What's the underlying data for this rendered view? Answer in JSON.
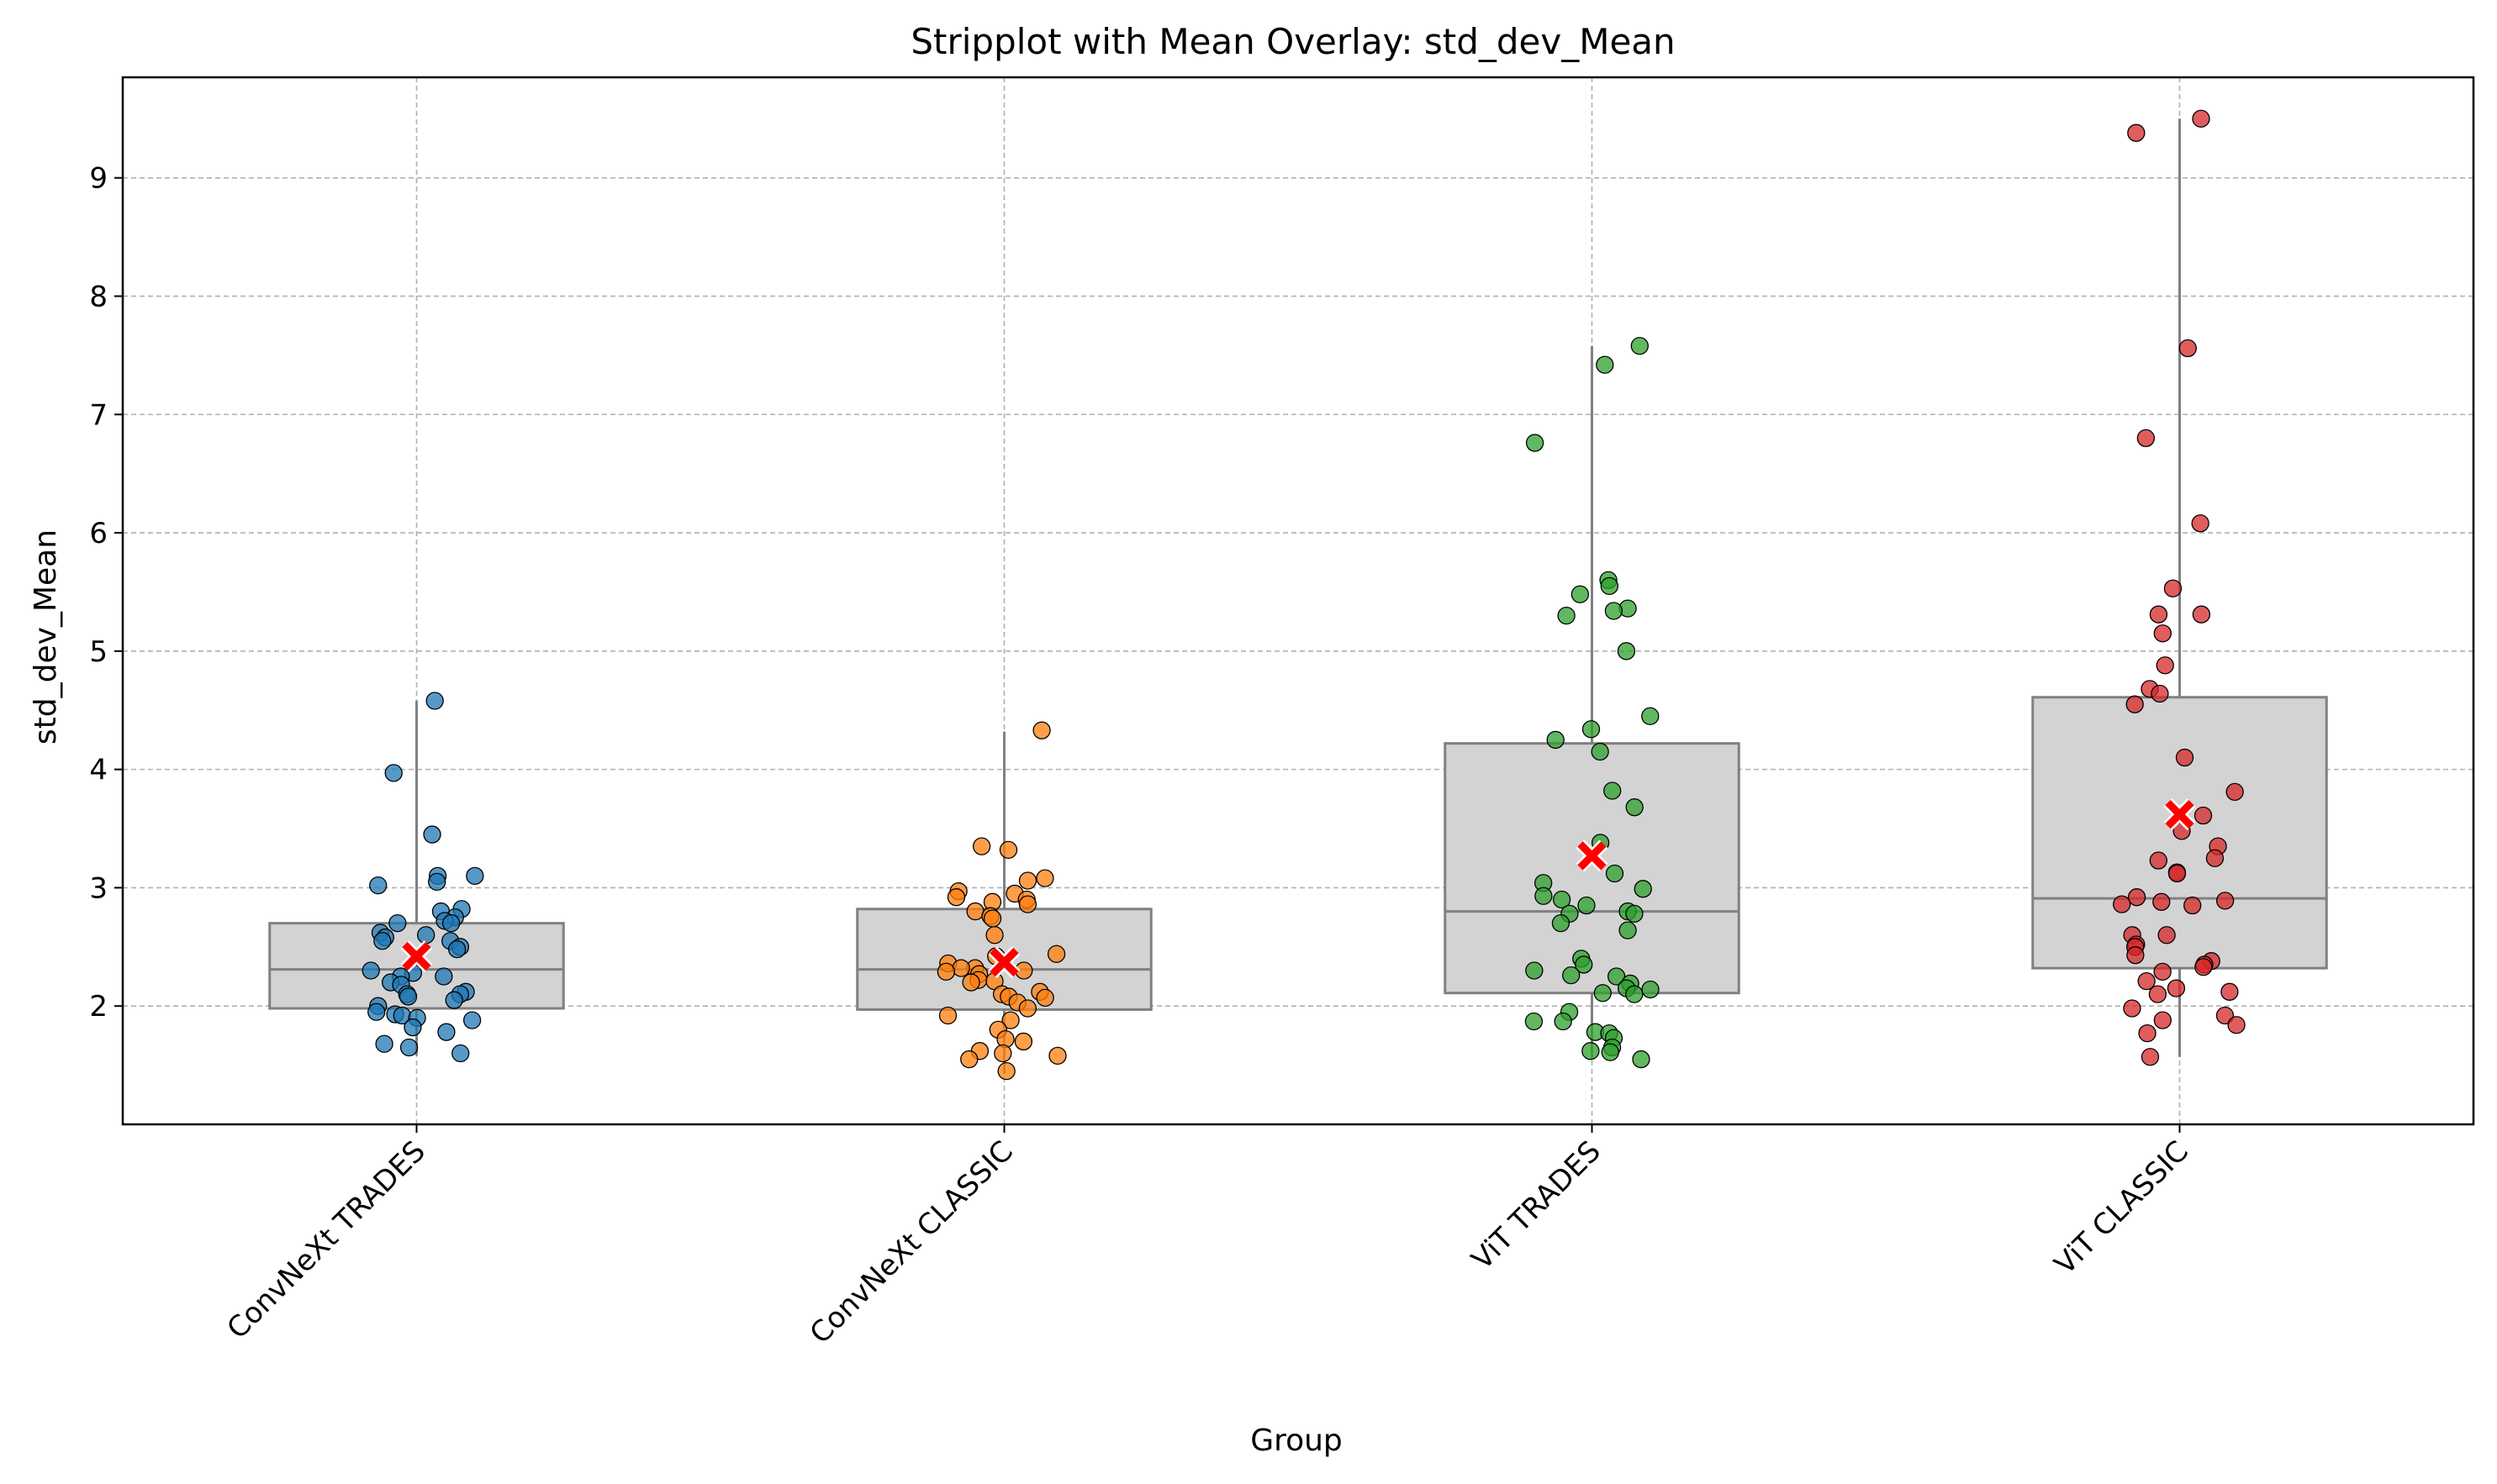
{
  "chart_data": {
    "type": "box_strip",
    "title": "Stripplot with Mean Overlay: std_dev_Mean",
    "xlabel": "Group",
    "ylabel": "std_dev_Mean",
    "categories": [
      "ConvNeXt TRADES",
      "ConvNeXt CLASSIC",
      "ViT TRADES",
      "ViT CLASSIC"
    ],
    "ylim": [
      1.0,
      9.85
    ],
    "yticks": [
      2,
      3,
      4,
      5,
      6,
      7,
      8,
      9
    ],
    "grid": true,
    "box_color": "#d3d3d3",
    "box_edge_color": "#808080",
    "mean_marker_color": "#ff0000",
    "series": [
      {
        "category": "ConvNeXt TRADES",
        "color": "#1f77b4",
        "box": {
          "q1": 1.98,
          "median": 2.31,
          "q3": 2.7,
          "whisker_low": 1.58,
          "whisker_high": 4.58
        },
        "mean": 2.42,
        "points": [
          4.58,
          3.97,
          3.45,
          3.1,
          3.1,
          3.05,
          3.02,
          2.82,
          2.8,
          2.75,
          2.72,
          2.7,
          2.7,
          2.62,
          2.6,
          2.58,
          2.55,
          2.55,
          2.5,
          2.48,
          2.3,
          2.28,
          2.25,
          2.25,
          2.2,
          2.18,
          2.12,
          2.1,
          2.1,
          2.08,
          2.05,
          2.0,
          1.95,
          1.93,
          1.92,
          1.9,
          1.88,
          1.82,
          1.78,
          1.68,
          1.65,
          1.6
        ]
      },
      {
        "category": "ConvNeXt CLASSIC",
        "color": "#ff7f0e",
        "box": {
          "q1": 1.97,
          "median": 2.31,
          "q3": 2.82,
          "whisker_low": 1.43,
          "whisker_high": 4.32
        },
        "mean": 2.37,
        "points": [
          4.33,
          3.35,
          3.32,
          3.08,
          3.06,
          2.97,
          2.95,
          2.92,
          2.9,
          2.88,
          2.86,
          2.8,
          2.76,
          2.74,
          2.6,
          2.44,
          2.42,
          2.36,
          2.32,
          2.32,
          2.3,
          2.29,
          2.27,
          2.22,
          2.21,
          2.2,
          2.12,
          2.1,
          2.08,
          2.07,
          2.03,
          1.98,
          1.92,
          1.88,
          1.8,
          1.72,
          1.7,
          1.62,
          1.6,
          1.58,
          1.55,
          1.45
        ]
      },
      {
        "category": "ViT TRADES",
        "color": "#2ca02c",
        "box": {
          "q1": 2.11,
          "median": 2.8,
          "q3": 4.22,
          "whisker_low": 1.55,
          "whisker_high": 7.58
        },
        "mean": 3.27,
        "points": [
          7.58,
          7.42,
          6.76,
          5.6,
          5.55,
          5.48,
          5.36,
          5.34,
          5.3,
          5.0,
          4.45,
          4.34,
          4.25,
          4.15,
          3.82,
          3.68,
          3.38,
          3.12,
          3.04,
          2.99,
          2.93,
          2.9,
          2.85,
          2.8,
          2.78,
          2.78,
          2.7,
          2.64,
          2.4,
          2.35,
          2.3,
          2.26,
          2.25,
          2.19,
          2.15,
          2.14,
          2.11,
          2.1,
          1.95,
          1.87,
          1.87,
          1.78,
          1.77,
          1.73,
          1.65,
          1.62,
          1.61,
          1.55
        ]
      },
      {
        "category": "ViT CLASSIC",
        "color": "#d62728",
        "box": {
          "q1": 2.32,
          "median": 2.91,
          "q3": 4.61,
          "whisker_low": 1.57,
          "whisker_high": 9.5
        },
        "mean": 3.62,
        "points": [
          9.5,
          9.38,
          7.56,
          6.8,
          6.08,
          5.53,
          5.31,
          5.31,
          5.15,
          4.88,
          4.68,
          4.64,
          4.55,
          4.1,
          3.81,
          3.61,
          3.48,
          3.35,
          3.25,
          3.23,
          3.13,
          3.12,
          2.92,
          2.89,
          2.88,
          2.86,
          2.85,
          2.6,
          2.6,
          2.52,
          2.5,
          2.43,
          2.38,
          2.35,
          2.33,
          2.29,
          2.21,
          2.15,
          2.12,
          2.1,
          1.98,
          1.92,
          1.88,
          1.84,
          1.77,
          1.57
        ]
      }
    ]
  }
}
